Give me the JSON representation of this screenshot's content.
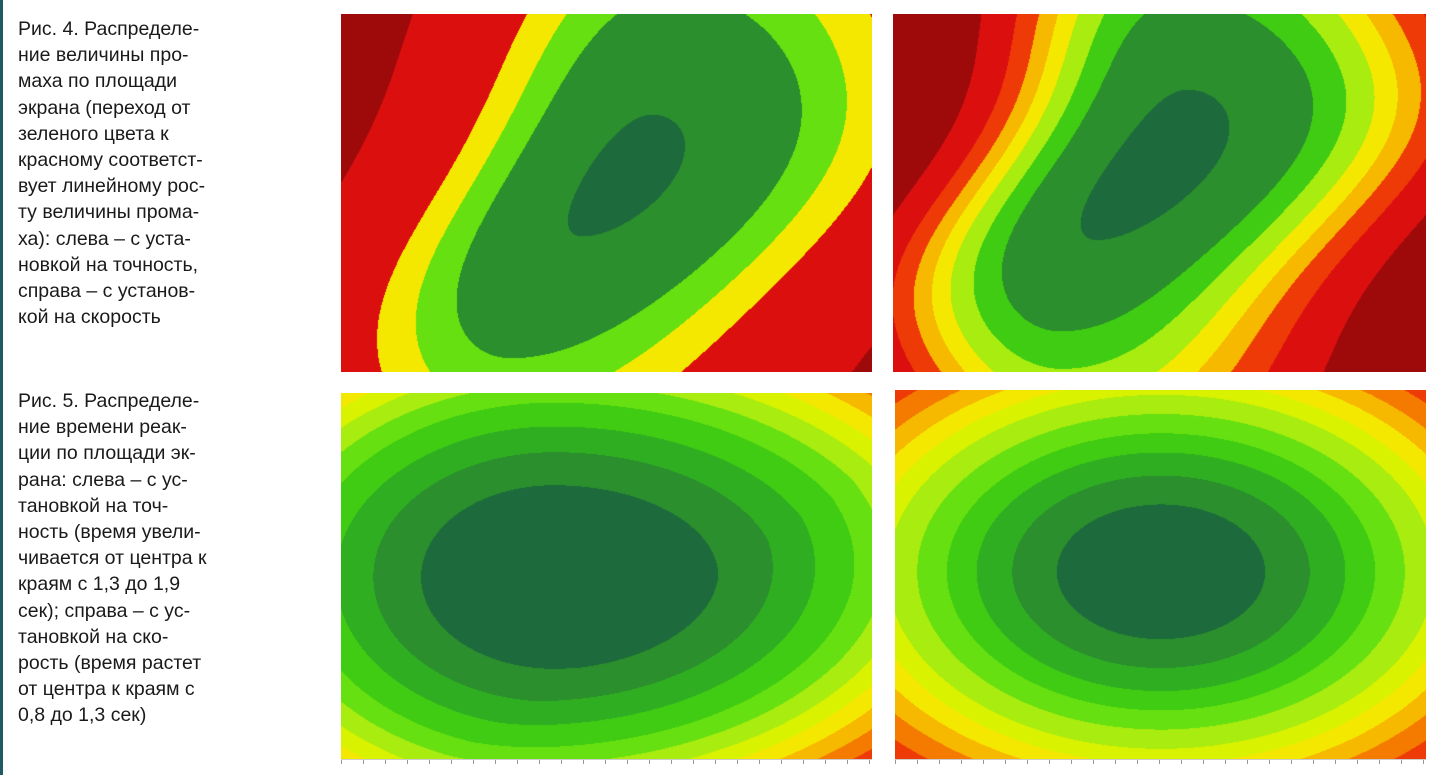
{
  "figure4": {
    "caption": "Рис. 4. Распределе-\nние величины про-\nмаха по площади\nэкрана (переход от\nзеленого цвета к\nкрасному соответст-\nвует линейному рос-\nту величины прома-\nха): слева – с уста-\nновкой на точность,\nсправа – с установ-\nкой на скорость"
  },
  "figure5": {
    "caption": "Рис. 5. Распределе-\nние времени реак-\nции по площади эк-\nрана: слева – с ус-\nтановкой на точ-\nность (время увели-\nчивается от центра к\nкраям с 1,3 до 1,9\nсек);  справа – с ус-\nтановкой на ско-\nрость (время растет\nот центра к краям с\n0,8 до 1,3 сек)"
  },
  "colors": {
    "scale": [
      "#1d6a3c",
      "#2a8f2c",
      "#2fae22",
      "#3fcc12",
      "#66e010",
      "#a8ec10",
      "#d8f200",
      "#f5e800",
      "#f7b800",
      "#f47a00",
      "#ee3a06",
      "#dc0f0f",
      "#9e0a0a"
    ],
    "edge": "#1f5a60"
  }
}
